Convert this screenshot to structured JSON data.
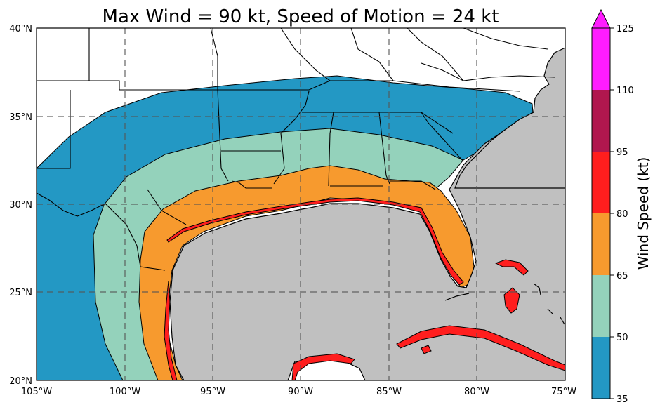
{
  "title": "Max Wind = 90 kt, Speed of Motion = 24 kt",
  "map": {
    "lon_range": [
      -105,
      -75
    ],
    "lat_range": [
      20,
      40
    ],
    "lon_ticks": [
      {
        "lon": -105,
        "label": "105°W"
      },
      {
        "lon": -100,
        "label": "100°W"
      },
      {
        "lon": -95,
        "label": "95°W"
      },
      {
        "lon": -90,
        "label": "90°W"
      },
      {
        "lon": -85,
        "label": "85°W"
      },
      {
        "lon": -80,
        "label": "80°W"
      },
      {
        "lon": -75,
        "label": "75°W"
      }
    ],
    "lat_ticks": [
      {
        "lat": 20,
        "label": "20°N"
      },
      {
        "lat": 25,
        "label": "25°N"
      },
      {
        "lat": 30,
        "label": "30°N"
      },
      {
        "lat": 35,
        "label": "35°N"
      },
      {
        "lat": 40,
        "label": "40°N"
      }
    ],
    "gridlines": true,
    "ocean_color": "#c0c0c0",
    "land_color": "#ffffff"
  },
  "colorbar": {
    "label": "Wind Speed (kt)",
    "ticks": [
      "35",
      "50",
      "65",
      "80",
      "95",
      "110",
      "125"
    ],
    "bins": [
      {
        "min": 35,
        "max": 50,
        "color": "#2398c4"
      },
      {
        "min": 50,
        "max": 65,
        "color": "#94d2bb"
      },
      {
        "min": 65,
        "max": 80,
        "color": "#f79a2e"
      },
      {
        "min": 80,
        "max": 95,
        "color": "#ff1e1e"
      },
      {
        "min": 95,
        "max": 110,
        "color": "#b0174e"
      },
      {
        "min": 110,
        "max": 125,
        "color": "#ff1cff"
      }
    ],
    "extend": "max"
  }
}
